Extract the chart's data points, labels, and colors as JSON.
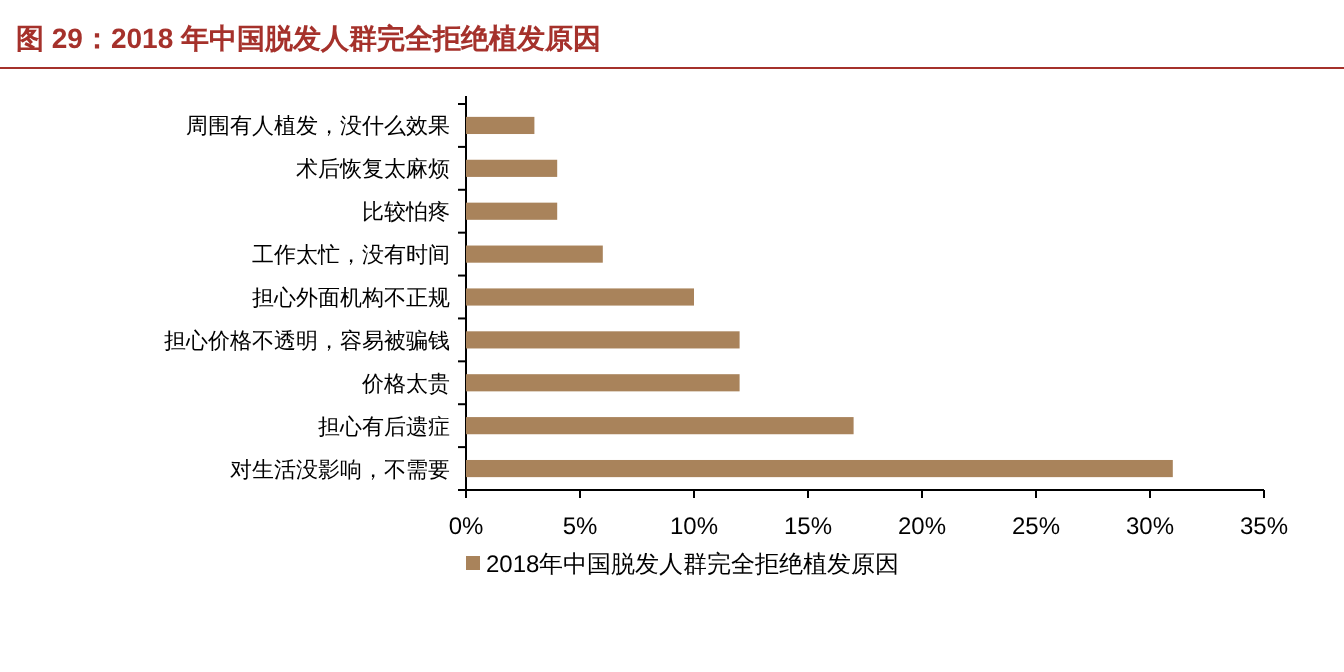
{
  "chart_data": {
    "type": "bar",
    "orientation": "horizontal",
    "title": "图 29：2018 年中国脱发人群完全拒绝植发原因",
    "categories": [
      "周围有人植发，没什么效果",
      "术后恢复太麻烦",
      "比较怕疼",
      "工作太忙，没有时间",
      "担心外面机构不正规",
      "担心价格不透明，容易被骗钱",
      "价格太贵",
      "担心有后遗症",
      "对生活没影响，不需要"
    ],
    "series": [
      {
        "name": "2018年中国脱发人群完全拒绝植发原因",
        "color": "#a9835b",
        "values": [
          3,
          4,
          4,
          6,
          10,
          12,
          12,
          17,
          31
        ]
      }
    ],
    "xlim": [
      0,
      35
    ],
    "xticks": [
      {
        "value": 0,
        "label": "0%"
      },
      {
        "value": 5,
        "label": "5%"
      },
      {
        "value": 10,
        "label": "10%"
      },
      {
        "value": 15,
        "label": "15%"
      },
      {
        "value": 20,
        "label": "20%"
      },
      {
        "value": 25,
        "label": "25%"
      },
      {
        "value": 30,
        "label": "30%"
      },
      {
        "value": 35,
        "label": "35%"
      }
    ],
    "grid": false,
    "legend": "bottom"
  }
}
